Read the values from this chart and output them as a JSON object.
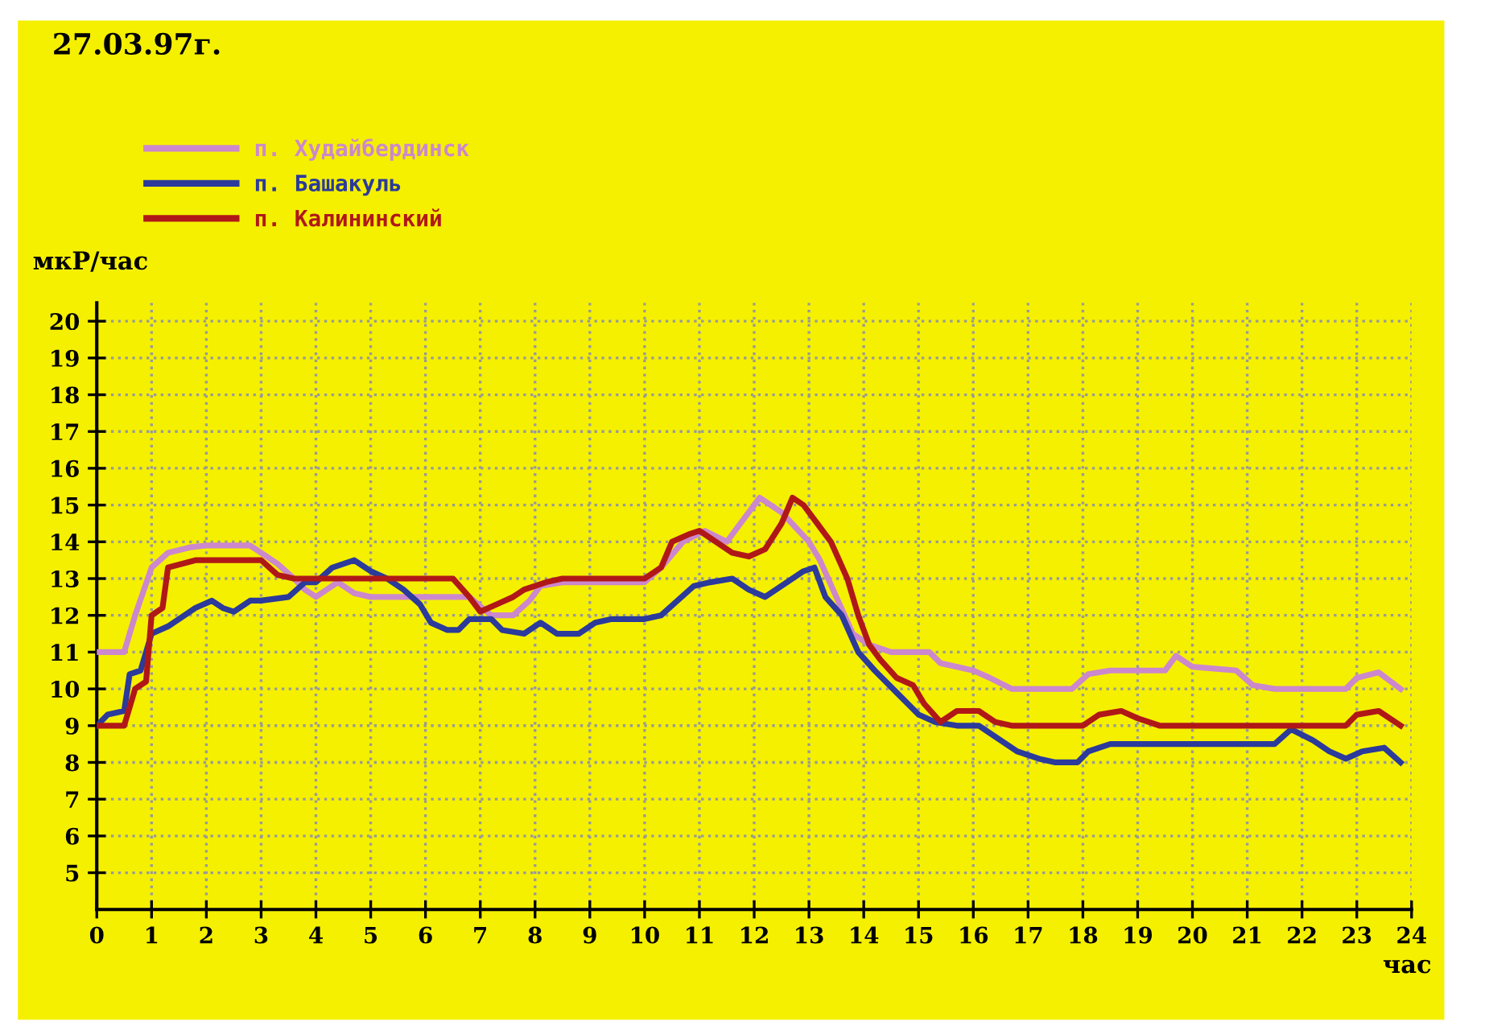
{
  "chart_data": {
    "type": "line",
    "title": "27.03.97г.",
    "ylabel": "мкР/час",
    "xlabel": "час",
    "xlim": [
      0,
      24
    ],
    "ylim": [
      4,
      20.5
    ],
    "xticks": [
      0,
      1,
      2,
      3,
      4,
      5,
      6,
      7,
      8,
      9,
      10,
      11,
      12,
      13,
      14,
      15,
      16,
      17,
      18,
      19,
      20,
      21,
      22,
      23,
      24
    ],
    "yticks": [
      5,
      6,
      7,
      8,
      9,
      10,
      11,
      12,
      13,
      14,
      15,
      16,
      17,
      18,
      19,
      20
    ],
    "grid": true,
    "legend": "top left",
    "line_style": "solid",
    "marker": "none",
    "series": [
      {
        "name": "п. Худайбердинск",
        "color": "#cc88cc",
        "x": [
          0,
          0.5,
          0.7,
          1.0,
          1.3,
          1.7,
          2,
          2.8,
          3.1,
          3.3,
          3.6,
          3.8,
          4.0,
          4.4,
          4.7,
          5,
          6,
          6.8,
          7.2,
          7.6,
          7.9,
          8.1,
          8.5,
          10,
          10.3,
          10.7,
          11.1,
          11.5,
          11.8,
          12.1,
          12.5,
          13.0,
          13.2,
          13.5,
          13.8,
          14.1,
          14.5,
          15.2,
          15.4,
          16.0,
          16.3,
          16.7,
          17.8,
          18.1,
          18.5,
          19.5,
          19.7,
          20.0,
          20.8,
          21.1,
          21.5,
          22.8,
          23.0,
          23.4,
          23.8
        ],
        "values": [
          11,
          11,
          12,
          13.3,
          13.7,
          13.85,
          13.9,
          13.9,
          13.6,
          13.4,
          13.0,
          12.7,
          12.5,
          12.9,
          12.6,
          12.5,
          12.5,
          12.5,
          12.0,
          12.0,
          12.4,
          12.8,
          12.9,
          12.9,
          13.3,
          14.0,
          14.3,
          14.0,
          14.6,
          15.2,
          14.8,
          14.0,
          13.5,
          12.5,
          11.5,
          11.2,
          11.0,
          11.0,
          10.7,
          10.5,
          10.3,
          10.0,
          10.0,
          10.4,
          10.5,
          10.5,
          10.9,
          10.6,
          10.5,
          10.1,
          10.0,
          10.0,
          10.3,
          10.45,
          10.0
        ]
      },
      {
        "name": "п. Башакуль",
        "color": "#2b3a9b",
        "x": [
          0,
          0.2,
          0.5,
          0.6,
          0.8,
          1.0,
          1.3,
          1.6,
          1.8,
          2.1,
          2.3,
          2.5,
          2.8,
          3.0,
          3.5,
          3.8,
          4.0,
          4.3,
          4.7,
          5.0,
          5.3,
          5.6,
          5.9,
          6.1,
          6.4,
          6.6,
          6.8,
          7.2,
          7.4,
          7.8,
          8.1,
          8.4,
          8.8,
          9.1,
          9.4,
          10.0,
          10.3,
          10.6,
          10.9,
          11.2,
          11.6,
          11.9,
          12.2,
          12.6,
          12.9,
          13.1,
          13.3,
          13.6,
          13.9,
          14.2,
          14.6,
          15.0,
          15.3,
          15.7,
          16.1,
          16.4,
          16.8,
          17.2,
          17.5,
          17.9,
          18.1,
          18.5,
          19.0,
          21.5,
          21.8,
          22.2,
          22.5,
          22.8,
          23.1,
          23.5,
          23.8
        ],
        "values": [
          9,
          9.3,
          9.4,
          10.4,
          10.5,
          11.5,
          11.7,
          12.0,
          12.2,
          12.4,
          12.2,
          12.1,
          12.4,
          12.4,
          12.5,
          12.9,
          12.9,
          13.3,
          13.5,
          13.2,
          13.0,
          12.7,
          12.3,
          11.8,
          11.6,
          11.6,
          11.9,
          11.9,
          11.6,
          11.5,
          11.8,
          11.5,
          11.5,
          11.8,
          11.9,
          11.9,
          12.0,
          12.4,
          12.8,
          12.9,
          13.0,
          12.7,
          12.5,
          12.9,
          13.2,
          13.3,
          12.5,
          12.0,
          11.0,
          10.5,
          9.9,
          9.3,
          9.1,
          9.0,
          9.0,
          8.7,
          8.3,
          8.1,
          8.0,
          8.0,
          8.3,
          8.5,
          8.5,
          8.5,
          8.9,
          8.6,
          8.3,
          8.1,
          8.3,
          8.4,
          8.0
        ]
      },
      {
        "name": "п. Калининский",
        "color": "#b01818",
        "x": [
          0,
          0.5,
          0.7,
          0.9,
          1.0,
          1.2,
          1.3,
          1.8,
          3.0,
          3.3,
          3.6,
          6.5,
          6.8,
          7.0,
          7.3,
          7.6,
          7.8,
          8.2,
          8.5,
          10.0,
          10.3,
          10.5,
          10.8,
          11.0,
          11.3,
          11.6,
          11.9,
          12.2,
          12.5,
          12.7,
          12.9,
          13.1,
          13.4,
          13.7,
          13.9,
          14.1,
          14.3,
          14.6,
          14.9,
          15.1,
          15.4,
          15.7,
          16.1,
          16.4,
          16.7,
          18.0,
          18.3,
          18.7,
          19.0,
          19.4,
          22.8,
          23.0,
          23.4,
          23.8
        ],
        "values": [
          9,
          9,
          10,
          10.2,
          12,
          12.2,
          13.3,
          13.5,
          13.5,
          13.1,
          13.0,
          13.0,
          12.5,
          12.1,
          12.3,
          12.5,
          12.7,
          12.9,
          13.0,
          13.0,
          13.3,
          14.0,
          14.2,
          14.3,
          14.0,
          13.7,
          13.6,
          13.8,
          14.5,
          15.2,
          15.0,
          14.6,
          14.0,
          13.0,
          12.0,
          11.2,
          10.8,
          10.3,
          10.1,
          9.6,
          9.1,
          9.4,
          9.4,
          9.1,
          9.0,
          9.0,
          9.3,
          9.4,
          9.2,
          9.0,
          9.0,
          9.3,
          9.4,
          9.0
        ]
      }
    ]
  }
}
